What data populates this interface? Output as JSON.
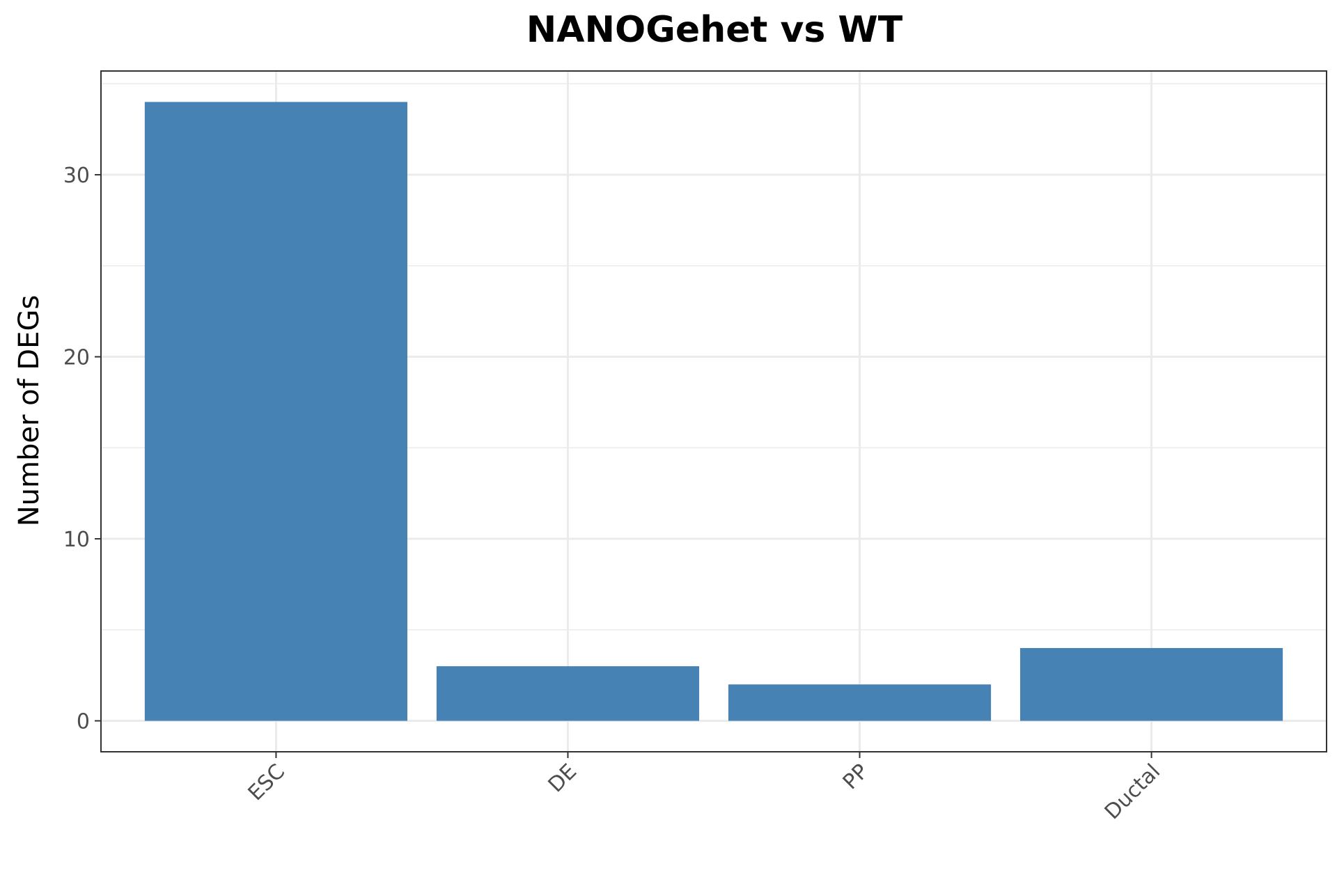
{
  "chart_data": {
    "type": "bar",
    "title": "NANOGehet vs WT",
    "xlabel": "",
    "ylabel": "Number of DEGs",
    "categories": [
      "ESC",
      "DE",
      "PP",
      "Ductal"
    ],
    "values": [
      34,
      3,
      2,
      4
    ],
    "ylim": [
      -1.7,
      35.7
    ],
    "yticks": [
      0,
      10,
      20,
      30
    ],
    "yticklabels": [
      "0",
      "10",
      "20",
      "30"
    ],
    "x_tick_rotation_deg": 45,
    "bar_color": "#4682B4",
    "grid": true,
    "grid_color": "#EBEBEB",
    "panel_border_color": "#333333",
    "legend": "none"
  }
}
